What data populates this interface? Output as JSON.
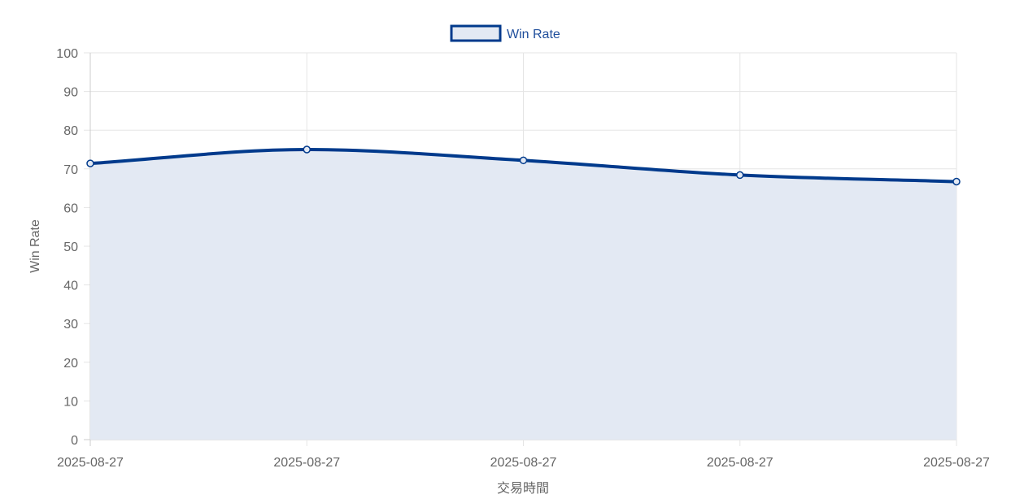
{
  "chart_data": {
    "type": "line",
    "filled": true,
    "smooth": true,
    "categories": [
      "2025-08-27",
      "2025-08-27",
      "2025-08-27",
      "2025-08-27",
      "2025-08-27"
    ],
    "series": [
      {
        "name": "Win Rate",
        "values": [
          71.4,
          75.0,
          72.2,
          68.4,
          66.7
        ],
        "line_color": "#003a8c",
        "fill_color": "#e3e9f3"
      }
    ],
    "xlabel": "交易時間",
    "ylabel": "Win Rate",
    "ylim": [
      0,
      100
    ],
    "yticks": [
      0,
      10,
      20,
      30,
      40,
      50,
      60,
      70,
      80,
      90,
      100
    ],
    "grid": true,
    "legend_position": "top-center"
  },
  "colors": {
    "grid": "#e5e5e5",
    "axis": "#cccccc",
    "tick_text": "#666666",
    "legend_text": "#1f4e9c"
  }
}
